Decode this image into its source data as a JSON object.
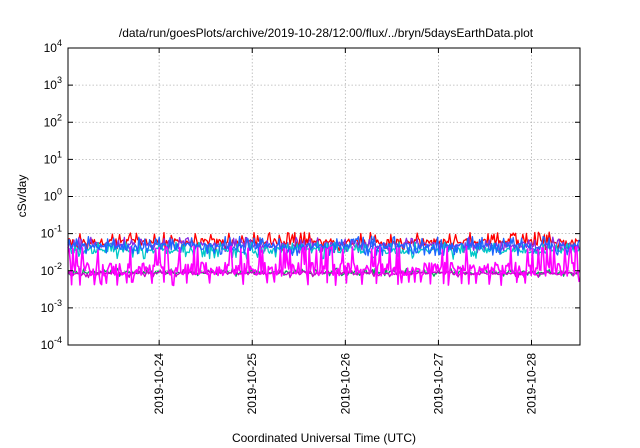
{
  "chart_data": {
    "type": "line",
    "title": "/data/run/goesPlots/archive/2019-10-28/12:00/flux/../bryn/5daysEarthData.plot",
    "xlabel": "Coordinated Universal Time (UTC)",
    "ylabel": "cSv/day",
    "yscale": "log",
    "ylim": [
      0.0001,
      10000
    ],
    "y_ticks": [
      {
        "base": "10",
        "exp": "-4"
      },
      {
        "base": "10",
        "exp": "-3"
      },
      {
        "base": "10",
        "exp": "-2"
      },
      {
        "base": "10",
        "exp": "-1"
      },
      {
        "base": "10",
        "exp": "0"
      },
      {
        "base": "10",
        "exp": "1"
      },
      {
        "base": "10",
        "exp": "2"
      },
      {
        "base": "10",
        "exp": "3"
      },
      {
        "base": "10",
        "exp": "4"
      }
    ],
    "xlim": [
      "2019-10-23T00:30",
      "2019-10-28T12:30"
    ],
    "x_ticks": [
      "2019-10-24",
      "2019-10-25",
      "2019-10-26",
      "2019-10-27",
      "2019-10-28"
    ],
    "grid": true,
    "series": [
      {
        "color": "#ff0000",
        "level": 0.06,
        "min": 0.035,
        "max": 0.11
      },
      {
        "color": "#8a2be2",
        "level": 0.05,
        "min": 0.03,
        "max": 0.08
      },
      {
        "color": "#00c8c8",
        "level": 0.035,
        "min": 0.02,
        "max": 0.06
      },
      {
        "color": "#1e64ff",
        "level": 0.045,
        "min": 0.025,
        "max": 0.085
      },
      {
        "color": "#00aa55",
        "level": 0.009,
        "min": 0.007,
        "max": 0.012
      },
      {
        "color": "#cc00cc",
        "level": 0.0085,
        "min": 0.0065,
        "max": 0.011
      },
      {
        "color": "#ff00ff",
        "level": 0.011,
        "min": 0.004,
        "max": 0.045
      }
    ]
  }
}
